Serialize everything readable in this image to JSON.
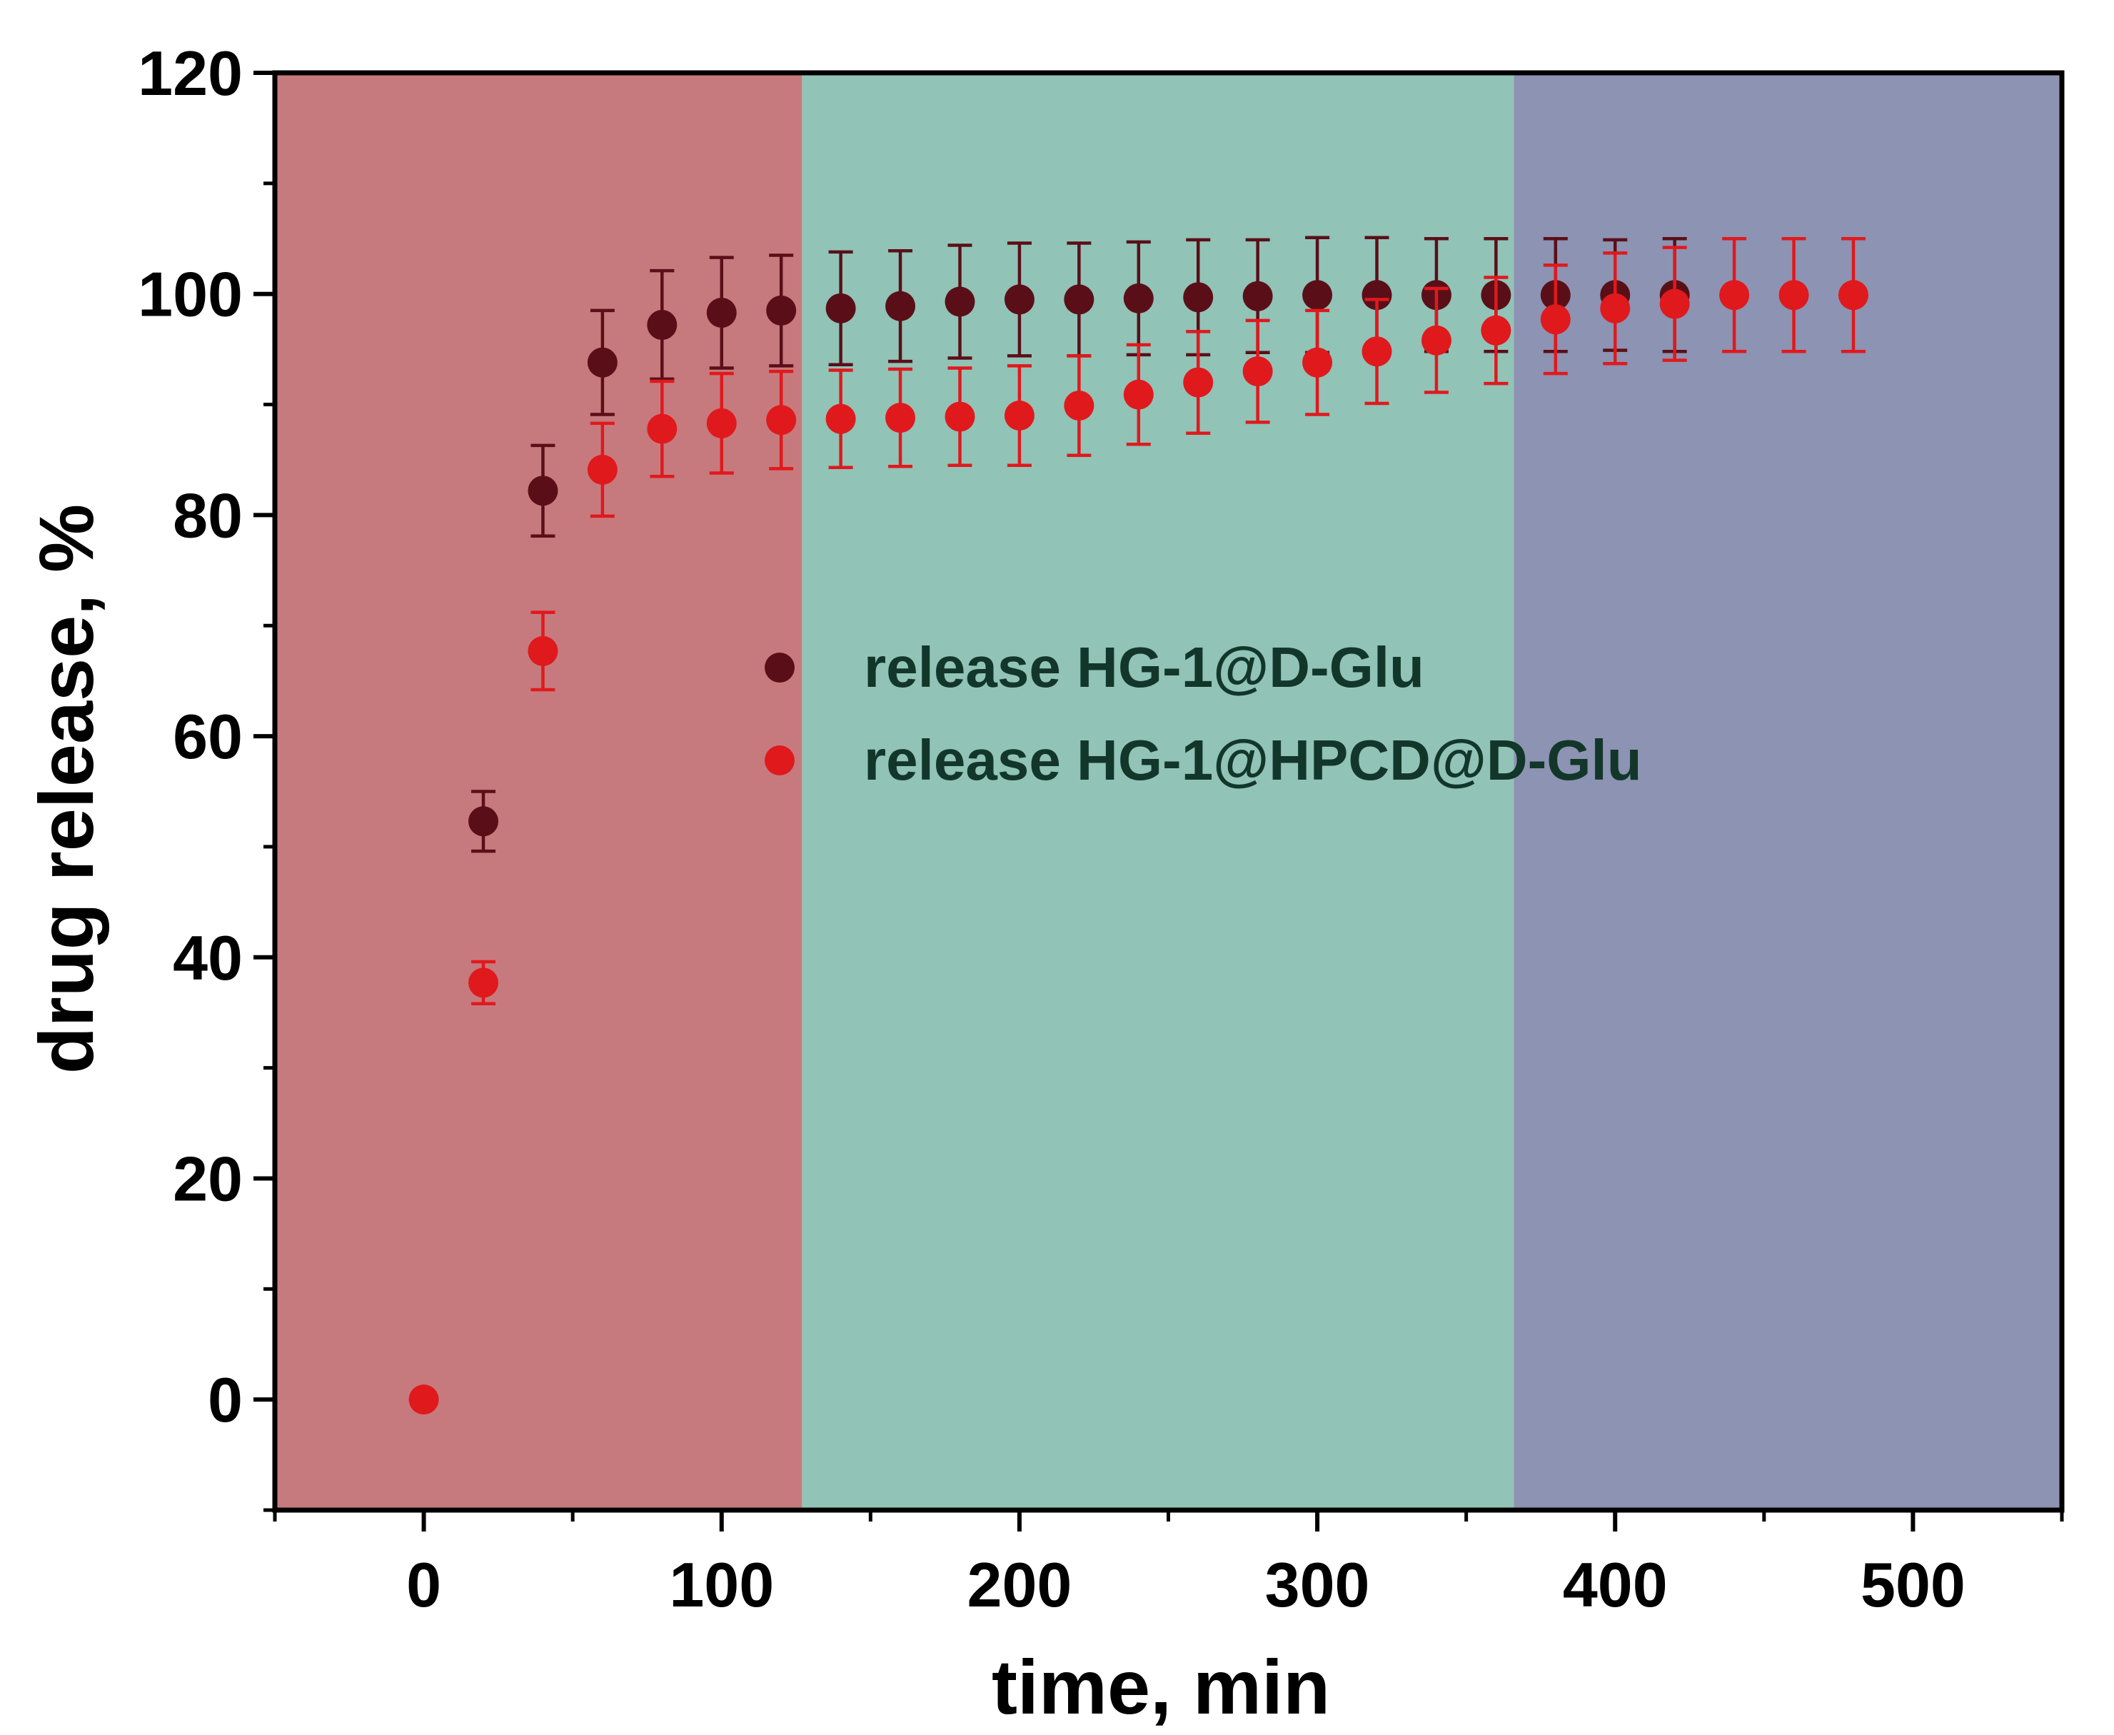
{
  "chart_data": {
    "type": "scatter",
    "xlabel": "time, min",
    "ylabel": "drug release, %",
    "xlim": [
      -50,
      550
    ],
    "ylim": [
      -10,
      120
    ],
    "x_ticks": [
      0,
      100,
      200,
      300,
      400,
      500
    ],
    "y_ticks": [
      0,
      20,
      40,
      60,
      80,
      100,
      120
    ],
    "grid": false,
    "legend_position": "center",
    "background_bands": [
      {
        "x_start": -50,
        "x_end": 127,
        "color": "#c77a7d"
      },
      {
        "x_start": 127,
        "x_end": 366,
        "color": "#91c3b7"
      },
      {
        "x_start": 366,
        "x_end": 550,
        "color": "#8d93b2"
      }
    ],
    "series": [
      {
        "name": "release HG-1@D-Glu",
        "color": "#5a0f18",
        "x": [
          20,
          40,
          60,
          80,
          100,
          120,
          140,
          160,
          180,
          200,
          220,
          240,
          260,
          280,
          300,
          320,
          340,
          360,
          380,
          400,
          420
        ],
        "y": [
          52.3,
          82.2,
          93.8,
          97.2,
          98.3,
          98.5,
          98.7,
          98.9,
          99.3,
          99.5,
          99.5,
          99.6,
          99.7,
          99.8,
          99.9,
          99.9,
          99.9,
          99.9,
          99.9,
          99.9,
          99.9
        ],
        "error": [
          2.7,
          4.1,
          4.7,
          4.9,
          5.0,
          5.0,
          5.1,
          5.0,
          5.1,
          5.1,
          5.1,
          5.1,
          5.2,
          5.1,
          5.2,
          5.2,
          5.1,
          5.1,
          5.1,
          5.0,
          5.1
        ]
      },
      {
        "name": "release HG-1@HPCD@D-Glu",
        "color": "#e0191d",
        "x": [
          0,
          20,
          40,
          60,
          80,
          100,
          120,
          140,
          160,
          180,
          200,
          220,
          240,
          260,
          280,
          300,
          320,
          340,
          360,
          380,
          400,
          420,
          440,
          460,
          480
        ],
        "y": [
          0,
          37.7,
          67.7,
          84.1,
          87.8,
          88.3,
          88.6,
          88.7,
          88.8,
          88.9,
          89.0,
          89.9,
          90.9,
          92.0,
          93.0,
          93.8,
          94.8,
          95.8,
          96.7,
          97.7,
          98.7,
          99.1,
          99.9,
          99.9,
          99.9
        ],
        "error": [
          0.3,
          1.9,
          3.5,
          4.2,
          4.3,
          4.5,
          4.4,
          4.4,
          4.4,
          4.4,
          4.5,
          4.5,
          4.5,
          4.6,
          4.6,
          4.7,
          4.7,
          4.7,
          4.8,
          4.9,
          5.0,
          5.1,
          5.1,
          5.1,
          5.1
        ]
      }
    ]
  }
}
